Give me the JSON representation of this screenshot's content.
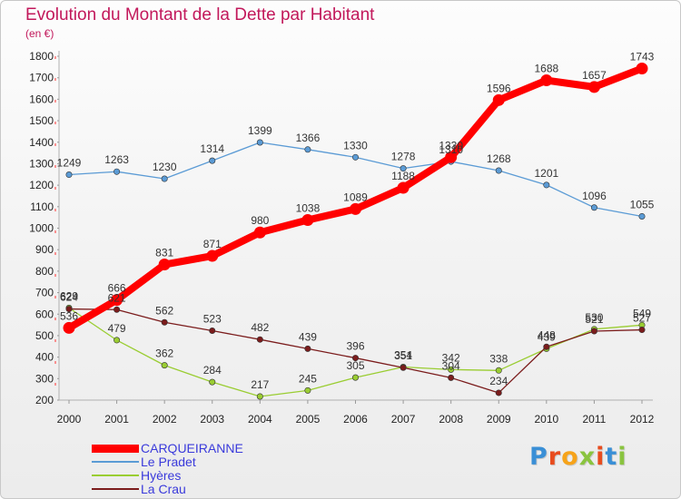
{
  "title": "Evolution du Montant de la Dette par Habitant",
  "subtitle": "(en €)",
  "logo": {
    "text": "Proxiti",
    "letters": [
      "P",
      "r",
      "o",
      "x",
      "i",
      "t",
      "i"
    ],
    "colors": [
      "#3a8fd6",
      "#e84c1e",
      "#f6a31a",
      "#8ac43f",
      "#e84c1e",
      "#3a8fd6",
      "#8ac43f"
    ]
  },
  "chart_data": {
    "type": "line",
    "x": [
      "2000",
      "2001",
      "2002",
      "2003",
      "2004",
      "2005",
      "2006",
      "2007",
      "2008",
      "2009",
      "2010",
      "2011",
      "2012"
    ],
    "ylim": [
      200,
      1800
    ],
    "yticks": [
      200,
      300,
      400,
      500,
      600,
      700,
      800,
      900,
      1000,
      1100,
      1200,
      1300,
      1400,
      1500,
      1600,
      1700,
      1800
    ],
    "grid": false,
    "legend_position": "bottom-left",
    "series": [
      {
        "name": "CARQUEIRANNE",
        "color": "#ff0000",
        "emphasis": true,
        "values": [
          536,
          666,
          831,
          871,
          980,
          1038,
          1089,
          1188,
          1330,
          1596,
          1688,
          1657,
          1743
        ]
      },
      {
        "name": "Le Pradet",
        "color": "#5b9bd5",
        "emphasis": false,
        "values": [
          1249,
          1263,
          1230,
          1314,
          1399,
          1366,
          1330,
          1278,
          1310,
          1268,
          1201,
          1096,
          1055
        ]
      },
      {
        "name": "Hyères",
        "color": "#9acd32",
        "emphasis": false,
        "values": [
          629,
          479,
          362,
          284,
          217,
          245,
          305,
          354,
          342,
          338,
          439,
          530,
          549
        ]
      },
      {
        "name": "La Crau",
        "color": "#7b1c1c",
        "emphasis": false,
        "values": [
          624,
          621,
          562,
          523,
          482,
          439,
          396,
          351,
          304,
          234,
          448,
          521,
          527
        ]
      }
    ]
  }
}
